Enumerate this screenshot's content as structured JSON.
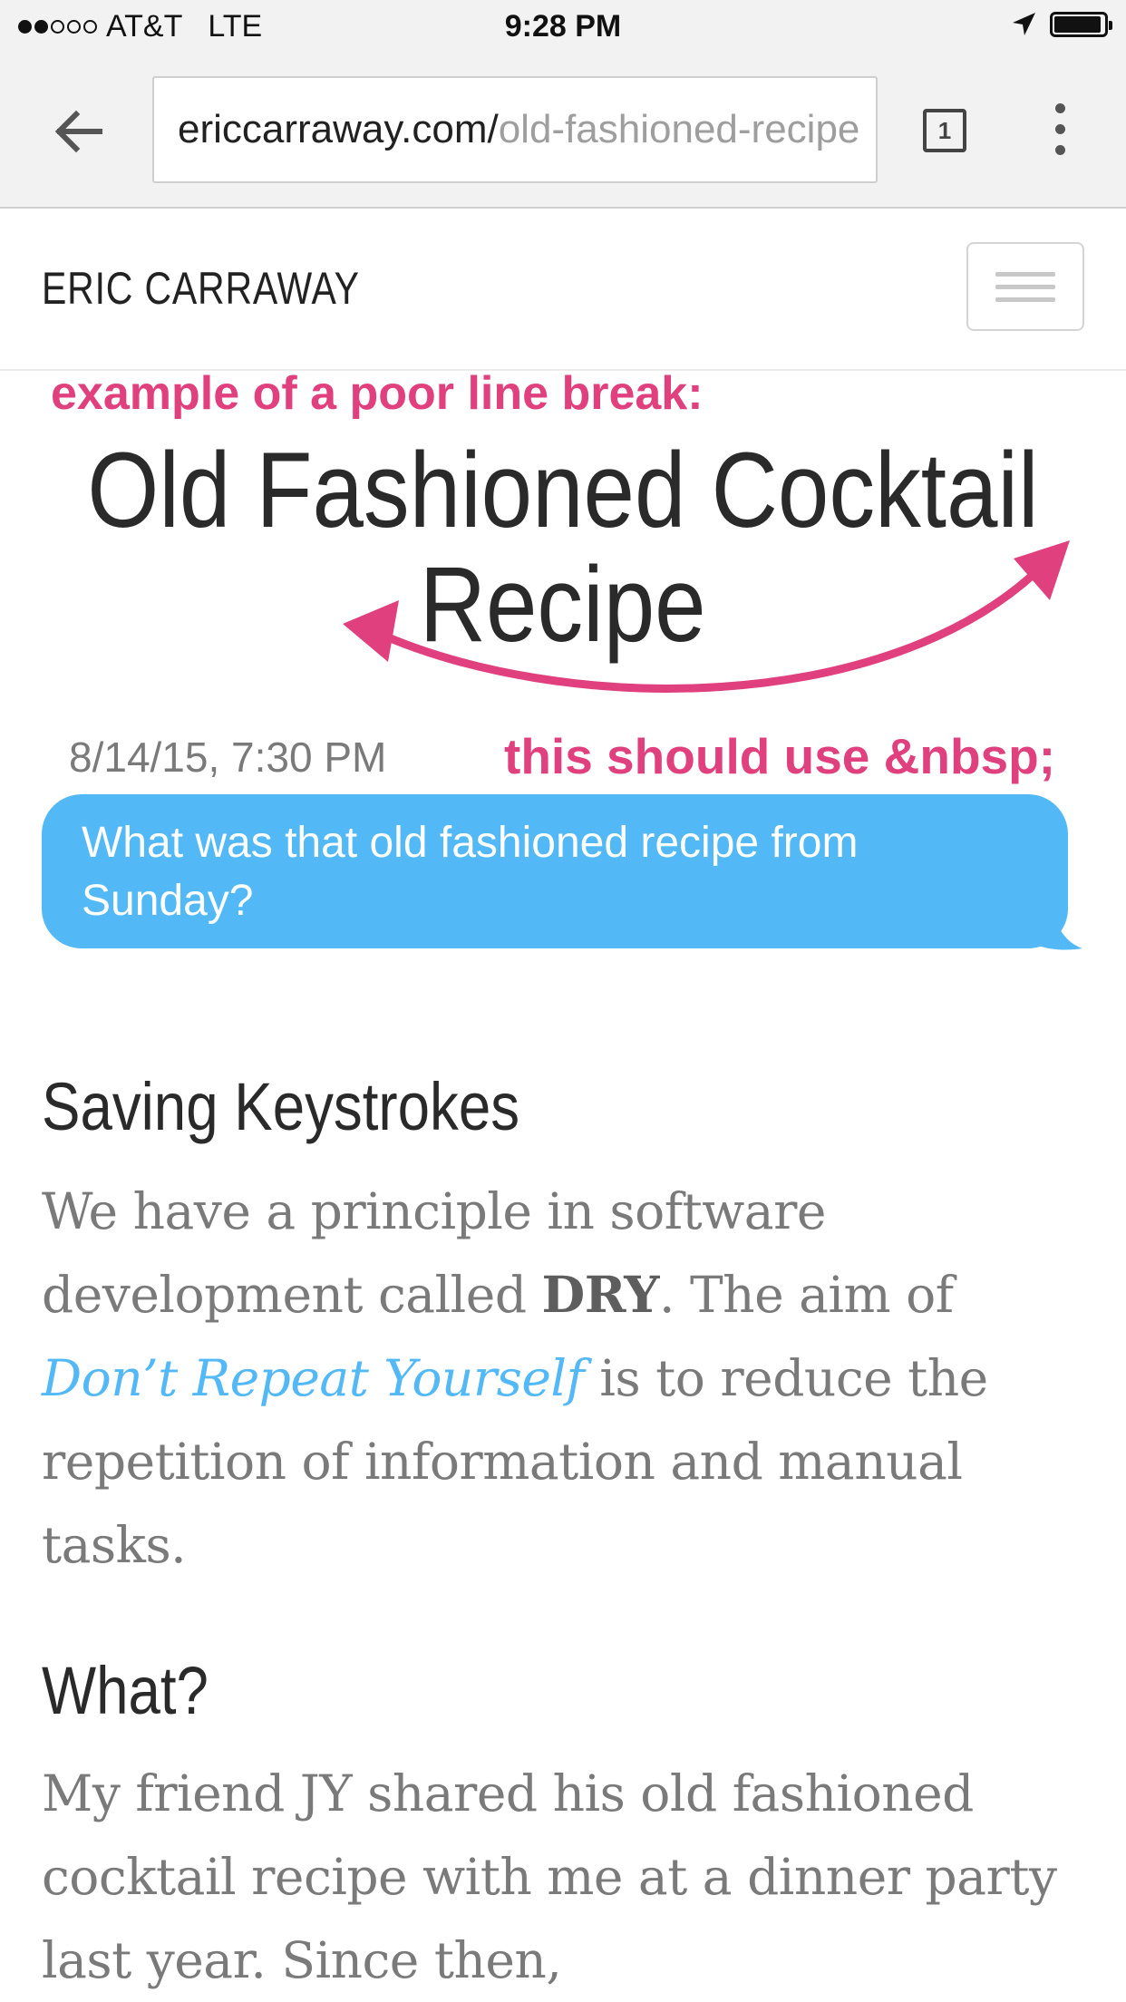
{
  "status_bar": {
    "carrier": "AT&T",
    "network": "LTE",
    "time": "9:28 PM",
    "signal_filled": 2,
    "signal_total": 5,
    "battery_level": 0.95
  },
  "browser": {
    "url_host": "ericcarraway.com/",
    "url_path": "old-fashioned-recipe",
    "tab_count": "1"
  },
  "site": {
    "brand": "ERIC CARRAWAY"
  },
  "annotations": {
    "top": "example of a poor line break:",
    "nbsp": "this should use &nbsp;",
    "accent_color": "#e0417e"
  },
  "article": {
    "title_line1": "Old Fashioned Cocktail",
    "title_line2": "Recipe",
    "message_time": "8/14/15, 7:30 PM",
    "message_text": "What was that old fashioned recipe from Sunday?",
    "bubble_color": "#52b8f6",
    "sections": [
      {
        "heading": "Saving Keystrokes",
        "p_part1": "We have a principle in software development called ",
        "p_bold": "DRY",
        "p_part2": ".  The aim of ",
        "p_link": "Don’t Repeat Yourself",
        "p_part3": " is to reduce the repetition of information and manual tasks."
      },
      {
        "heading": "What?",
        "p_text": "My friend JY shared his old fashioned cocktail recipe with me at a dinner party last year.  Since then,"
      }
    ]
  }
}
